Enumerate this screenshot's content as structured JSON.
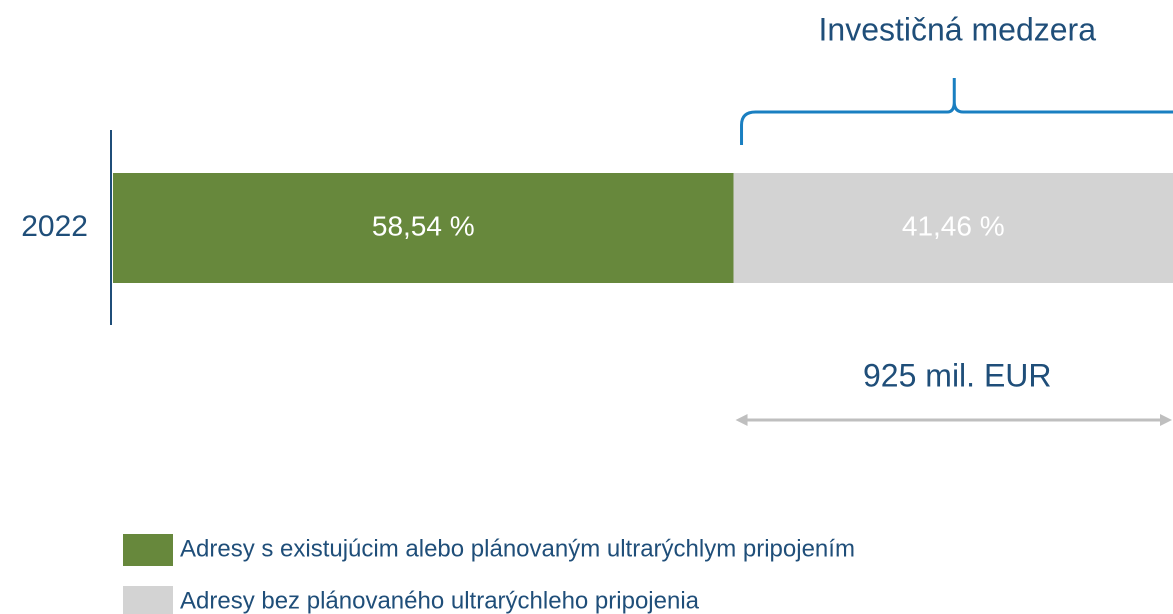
{
  "chart_data": {
    "type": "stacked_bar_horizontal",
    "categories": [
      "2022"
    ],
    "series": [
      {
        "name": "Adresy s existujúcim alebo plánovaným ultrarýchlym pripojením",
        "color": "#67883c",
        "values": [
          58.54
        ],
        "value_labels": [
          "58,54 %"
        ]
      },
      {
        "name": "Adresy bez plánovaného ultrarýchleho pripojenia",
        "color": "#d3d3d3",
        "values": [
          41.46
        ],
        "value_labels": [
          "41,46 %"
        ]
      }
    ],
    "annotations": [
      "Investičná medzera",
      "925 mil. EUR"
    ]
  }
}
